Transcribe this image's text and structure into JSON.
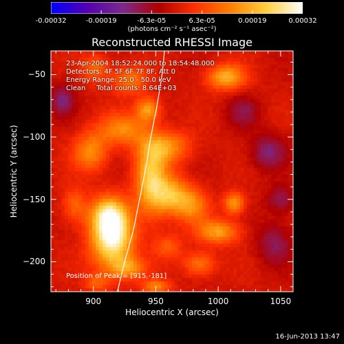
{
  "chart_data": {
    "type": "heatmap",
    "title": "Reconstructed RHESSI Image",
    "xlabel": "Heliocentric X (arcsec)",
    "ylabel": "Heliocentric Y (arcsec)",
    "xlim": [
      866,
      1060
    ],
    "ylim": [
      -224,
      -31
    ],
    "xticks": [
      900,
      950,
      1000,
      1050
    ],
    "yticks": [
      -50,
      -100,
      -150,
      -200
    ],
    "colorbar": {
      "range": [
        -0.00032,
        0.00032
      ],
      "ticks": [
        "-0.00032",
        "-0.00019",
        "-6.3e-05",
        "6.3e-05",
        "0.00019",
        "0.00032"
      ],
      "units": "(photons cm⁻² s⁻¹ asec⁻²)",
      "colormap": "rhessi-standard",
      "colors": [
        "#0000ff",
        "#5500b0",
        "#7a2a8a",
        "#b00000",
        "#ff3000",
        "#ff8000",
        "#ffd040",
        "#ffffff"
      ]
    },
    "sources": [
      {
        "x": 915,
        "y": -181,
        "sx": 12,
        "sy": 17,
        "amp": 1.0
      },
      {
        "x": 912,
        "y": -162,
        "sx": 10,
        "sy": 10,
        "amp": 0.55
      },
      {
        "x": 928,
        "y": -205,
        "sx": 10,
        "sy": 6,
        "amp": 0.45
      },
      {
        "x": 946,
        "y": -135,
        "sx": 9,
        "sy": 20,
        "amp": 0.7
      },
      {
        "x": 963,
        "y": -147,
        "sx": 10,
        "sy": 11,
        "amp": 0.62
      },
      {
        "x": 958,
        "y": -108,
        "sx": 14,
        "sy": 9,
        "amp": 0.5
      },
      {
        "x": 944,
        "y": -78,
        "sx": 7,
        "sy": 7,
        "amp": 0.55
      },
      {
        "x": 898,
        "y": -112,
        "sx": 10,
        "sy": 11,
        "amp": 0.48
      },
      {
        "x": 924,
        "y": -94,
        "sx": 14,
        "sy": 9,
        "amp": 0.45
      },
      {
        "x": 929,
        "y": -54,
        "sx": 10,
        "sy": 8,
        "amp": 0.42
      },
      {
        "x": 902,
        "y": -45,
        "sx": 8,
        "sy": 8,
        "amp": 0.35
      },
      {
        "x": 885,
        "y": -155,
        "sx": 7,
        "sy": 10,
        "amp": 0.35
      },
      {
        "x": 1006,
        "y": -52,
        "sx": 11,
        "sy": 7,
        "amp": 0.62
      },
      {
        "x": 1013,
        "y": -153,
        "sx": 6,
        "sy": 6,
        "amp": 0.55
      },
      {
        "x": 1000,
        "y": -176,
        "sx": 12,
        "sy": 7,
        "amp": 0.55
      },
      {
        "x": 980,
        "y": -155,
        "sx": 9,
        "sy": 10,
        "amp": 0.4
      },
      {
        "x": 985,
        "y": -202,
        "sx": 9,
        "sy": 7,
        "amp": 0.42
      },
      {
        "x": 960,
        "y": -188,
        "sx": 8,
        "sy": 7,
        "amp": 0.3
      },
      {
        "x": 950,
        "y": -220,
        "sx": 8,
        "sy": 4,
        "amp": 0.45
      },
      {
        "x": 903,
        "y": -217,
        "sx": 7,
        "sy": 5,
        "amp": 0.3
      },
      {
        "x": 1040,
        "y": -112,
        "sx": 10,
        "sy": 10,
        "amp": -0.35
      },
      {
        "x": 1045,
        "y": -185,
        "sx": 10,
        "sy": 12,
        "amp": -0.3
      },
      {
        "x": 875,
        "y": -70,
        "sx": 7,
        "sy": 9,
        "amp": -0.35
      },
      {
        "x": 1020,
        "y": -80,
        "sx": 9,
        "sy": 9,
        "amp": -0.25
      },
      {
        "x": 1050,
        "y": -150,
        "sx": 8,
        "sy": 8,
        "amp": -0.3
      }
    ],
    "limb": [
      [
        919,
        -225
      ],
      [
        925,
        -200
      ],
      [
        932,
        -175
      ],
      [
        937,
        -150
      ],
      [
        942,
        -125
      ],
      [
        946,
        -100
      ],
      [
        951,
        -75
      ],
      [
        955,
        -50
      ],
      [
        957,
        -31
      ]
    ]
  },
  "info": [
    "23-Apr-2004 18:52:24.000 to 18:54:48.000",
    "Detectors: 4F 5F 6F 7F 8F, Att 0",
    "Energy Range: 25.0 - 50.0 keV",
    "Clean     Total counts: 8.64E+03"
  ],
  "peak_text": "Position of Peak = [915,-181]",
  "footer": "16-Jun-2013 13:47"
}
